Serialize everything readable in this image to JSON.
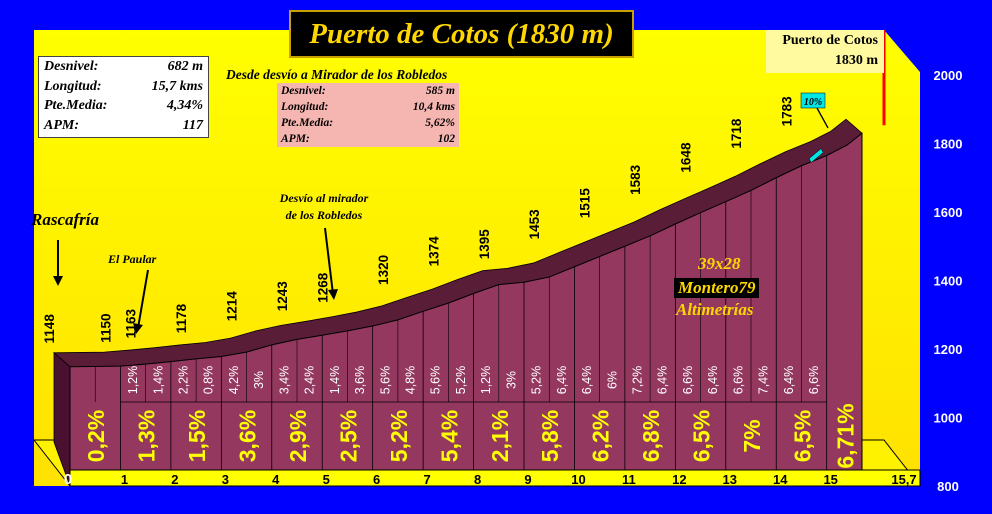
{
  "title": "Puerto de Cotos (1830 m)",
  "stats": [
    {
      "label": "Desnivel:",
      "value": "682 m"
    },
    {
      "label": "Longitud:",
      "value": "15,7 kms"
    },
    {
      "label": "Pte.Media:",
      "value": "4,34%"
    },
    {
      "label": "APM:",
      "value": "117"
    }
  ],
  "sub_section": {
    "title": "Desde desvío a Mirador de los Robledos",
    "stats": [
      {
        "label": "Desnivel:",
        "value": "585 m"
      },
      {
        "label": "Longitud:",
        "value": "10,4 kms"
      },
      {
        "label": "Pte.Media:",
        "value": "5,62%"
      },
      {
        "label": "APM:",
        "value": "102"
      }
    ]
  },
  "summit": {
    "name": "Puerto de Cotos",
    "altitude": "1830 m"
  },
  "places": [
    {
      "name": "Rascafría"
    },
    {
      "name": "El Paular"
    },
    {
      "name_line1": "Desvío al mirador",
      "name_line2": "de los Robledos"
    }
  ],
  "credit": {
    "line1": "39x28",
    "line2": "Montero79",
    "line3": "Altimetrías"
  },
  "steep_marker": "10%",
  "chart_data": {
    "type": "area",
    "y_ticks": [
      "800",
      "1000",
      "1200",
      "1400",
      "1600",
      "1800",
      "2000"
    ],
    "ylim": [
      800,
      2000
    ],
    "km_labels": [
      "0",
      "1",
      "2",
      "3",
      "4",
      "5",
      "6",
      "7",
      "8",
      "9",
      "10",
      "11",
      "12",
      "13",
      "14",
      "15",
      "15,7"
    ],
    "xlim": [
      0,
      15.7
    ],
    "altitudes": [
      {
        "km": 0,
        "alt": 1148,
        "label": "1148"
      },
      {
        "km": 1,
        "alt": 1150,
        "label": "1150"
      },
      {
        "km": 1.5,
        "alt": 1163,
        "label": "1163"
      },
      {
        "km": 2.5,
        "alt": 1178,
        "label": "1178"
      },
      {
        "km": 3.5,
        "alt": 1214,
        "label": "1214"
      },
      {
        "km": 4.5,
        "alt": 1243,
        "label": "1243"
      },
      {
        "km": 5.3,
        "alt": 1268,
        "label": "1268"
      },
      {
        "km": 6.5,
        "alt": 1320,
        "label": "1320"
      },
      {
        "km": 7.5,
        "alt": 1374,
        "label": "1374"
      },
      {
        "km": 8.5,
        "alt": 1395,
        "label": "1395"
      },
      {
        "km": 9.5,
        "alt": 1453,
        "label": "1453"
      },
      {
        "km": 10.5,
        "alt": 1515,
        "label": "1515"
      },
      {
        "km": 11.5,
        "alt": 1583,
        "label": "1583"
      },
      {
        "km": 12.5,
        "alt": 1648,
        "label": "1648"
      },
      {
        "km": 13.5,
        "alt": 1718,
        "label": "1718"
      },
      {
        "km": 14.5,
        "alt": 1783,
        "label": "1783"
      }
    ],
    "profile": [
      [
        0,
        1148
      ],
      [
        1,
        1150
      ],
      [
        1.5,
        1156
      ],
      [
        2,
        1163
      ],
      [
        2.5,
        1171
      ],
      [
        3,
        1178
      ],
      [
        3.5,
        1191
      ],
      [
        4,
        1212
      ],
      [
        4.5,
        1228
      ],
      [
        5,
        1240
      ],
      [
        5.5,
        1253
      ],
      [
        6,
        1267
      ],
      [
        6.5,
        1285
      ],
      [
        7,
        1310
      ],
      [
        7.5,
        1334
      ],
      [
        8,
        1362
      ],
      [
        8.5,
        1388
      ],
      [
        9,
        1395
      ],
      [
        9.5,
        1410
      ],
      [
        10,
        1440
      ],
      [
        10.5,
        1470
      ],
      [
        11,
        1500
      ],
      [
        11.5,
        1530
      ],
      [
        12,
        1565
      ],
      [
        12.5,
        1598
      ],
      [
        13,
        1630
      ],
      [
        13.5,
        1663
      ],
      [
        14,
        1700
      ],
      [
        14.5,
        1735
      ],
      [
        15,
        1765
      ],
      [
        15.4,
        1795
      ],
      [
        15.7,
        1830
      ]
    ],
    "half_km_grades": [
      "1,2%",
      "1,4%",
      "2,2%",
      "0,8%",
      "4,2%",
      "3%",
      "3,4%",
      "2,4%",
      "1,4%",
      "3,6%",
      "5,6%",
      "4,8%",
      "5,6%",
      "5,2%",
      "1,2%",
      "3%",
      "5,2%",
      "6,4%",
      "6,4%",
      "6%",
      "7,2%",
      "6,4%",
      "6,6%",
      "6,4%",
      "6,6%",
      "7,4%",
      "6,4%",
      "6,6%"
    ],
    "km_grades": [
      "0,2%",
      "1,3%",
      "1,5%",
      "3,6%",
      "2,9%",
      "2,5%",
      "5,2%",
      "5,4%",
      "2,1%",
      "5,8%",
      "6,2%",
      "6,8%",
      "6,5%",
      "7%",
      "6,5%",
      "6,71%"
    ],
    "colors": {
      "background": "#0000FF",
      "chart_bg": "#FFFF00",
      "profile_fill": "#953860",
      "profile_top": "#5a1d38",
      "grade_text": "#FFFF00",
      "summit_line": "#FF0000",
      "marker": "#00E5E5"
    }
  }
}
